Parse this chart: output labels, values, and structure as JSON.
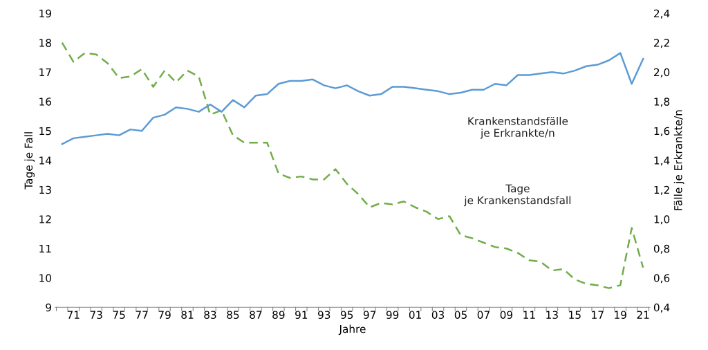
{
  "chart_data": {
    "type": "line",
    "xlabel": "Jahre",
    "ylabel": "Tage je Fall",
    "y2label": "Fälle je Erkrankte/n",
    "categories": [
      null,
      "71",
      null,
      "73",
      null,
      "75",
      null,
      "77",
      null,
      "79",
      null,
      "81",
      null,
      "83",
      null,
      "85",
      null,
      "87",
      null,
      "89",
      null,
      "91",
      null,
      "93",
      null,
      "95",
      null,
      "97",
      null,
      "99",
      null,
      "01",
      null,
      "03",
      null,
      "05",
      null,
      "07",
      null,
      "09",
      null,
      "11",
      null,
      "13",
      null,
      "15",
      null,
      "17",
      null,
      "19",
      null,
      "21"
    ],
    "series": [
      {
        "name": "Krankenstandsfälle je Erkrankte/n",
        "color": "#5b9bd5",
        "axis": "y2",
        "line_style": "solid",
        "values": [
          1.51,
          1.55,
          1.56,
          1.57,
          1.58,
          1.57,
          1.61,
          1.6,
          1.69,
          1.71,
          1.76,
          1.75,
          1.73,
          1.78,
          1.73,
          1.81,
          1.76,
          1.84,
          1.85,
          1.92,
          1.94,
          1.94,
          1.95,
          1.91,
          1.89,
          1.91,
          1.87,
          1.84,
          1.85,
          1.9,
          1.9,
          1.89,
          1.88,
          1.87,
          1.85,
          1.86,
          1.88,
          1.88,
          1.92,
          1.91,
          1.98,
          1.98,
          1.99,
          2.0,
          1.99,
          2.01,
          2.04,
          2.05,
          2.08,
          2.13,
          1.92,
          2.09
        ]
      },
      {
        "name": "Tage je Krankenstandsfall",
        "color": "#70ad47",
        "axis": "y",
        "line_style": "dashed",
        "values": [
          18.0,
          17.35,
          17.65,
          17.6,
          17.3,
          16.8,
          16.85,
          17.1,
          16.5,
          17.05,
          16.65,
          17.05,
          16.85,
          15.55,
          15.7,
          14.85,
          14.6,
          14.6,
          14.6,
          13.55,
          13.4,
          13.45,
          13.35,
          13.35,
          13.7,
          13.2,
          12.85,
          12.4,
          12.55,
          12.5,
          12.6,
          12.4,
          12.25,
          12.0,
          12.1,
          11.45,
          11.35,
          11.2,
          11.05,
          11.0,
          10.85,
          10.6,
          10.55,
          10.25,
          10.3,
          9.95,
          9.8,
          9.75,
          9.65,
          9.75,
          11.7,
          10.35
        ]
      }
    ],
    "ylim": [
      9,
      19
    ],
    "yticks": [
      9,
      10,
      11,
      12,
      13,
      14,
      15,
      16,
      17,
      18,
      19
    ],
    "y2lim": [
      0.4,
      2.4
    ],
    "y2ticks": [
      {
        "value": 0.4,
        "label": "0,4"
      },
      {
        "value": 0.6,
        "label": "0,6"
      },
      {
        "value": 0.8,
        "label": "0,8"
      },
      {
        "value": 1.0,
        "label": "1,0"
      },
      {
        "value": 1.2,
        "label": "1,2"
      },
      {
        "value": 1.4,
        "label": "1,4"
      },
      {
        "value": 1.6,
        "label": "1,6"
      },
      {
        "value": 1.8,
        "label": "1,8"
      },
      {
        "value": 2.0,
        "label": "2,0"
      },
      {
        "value": 2.2,
        "label": "2,2"
      },
      {
        "value": 2.4,
        "label": "2,4"
      }
    ],
    "grid": false,
    "legend": false,
    "marker": "none"
  }
}
